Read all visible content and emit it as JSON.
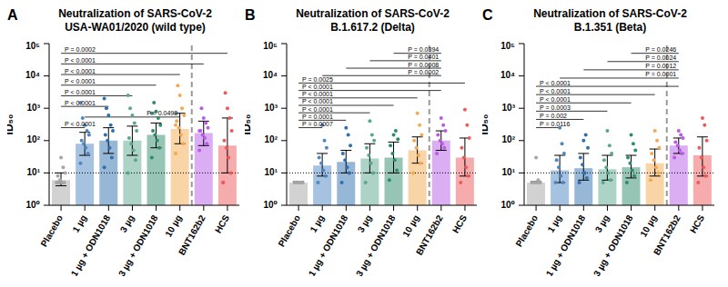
{
  "chart_data": [
    {
      "type": "bar",
      "panel_label": "A",
      "title": "Neutralization of SARS-CoV-2\nUSA-WA01/2020 (wild type)",
      "y_label": "ID₅₀",
      "log": "y",
      "categories": [
        "Placebo",
        "1 µg",
        "1 µg + ODN1018",
        "3 µg",
        "3 µg + ODN1018",
        "10 µg",
        "BNT162b2",
        "HCS"
      ],
      "colors": [
        "#a6a6a6",
        "#4e86c4",
        "#2f6fae",
        "#5aa88c",
        "#2e8b6e",
        "#f4a950",
        "#b85ce6",
        "#ee5a5a"
      ],
      "values": [
        6,
        80,
        100,
        100,
        150,
        230,
        170,
        70
      ],
      "error_low": [
        4,
        35,
        40,
        35,
        60,
        80,
        70,
        10
      ],
      "error_high": [
        10,
        180,
        250,
        280,
        350,
        700,
        400,
        500
      ],
      "points": [
        [
          5,
          5,
          5,
          6,
          8,
          10,
          15,
          30,
          5,
          5
        ],
        [
          20,
          40,
          60,
          80,
          100,
          150,
          200,
          300,
          500,
          1500
        ],
        [
          15,
          30,
          60,
          100,
          150,
          200,
          300,
          600,
          1000,
          2000
        ],
        [
          10,
          25,
          50,
          80,
          120,
          200,
          350,
          600,
          1000,
          2500
        ],
        [
          30,
          60,
          100,
          150,
          200,
          300,
          500,
          800,
          1500,
          700
        ],
        [
          40,
          80,
          150,
          250,
          400,
          600,
          1000,
          2500,
          5000,
          300
        ],
        [
          50,
          80,
          120,
          150,
          200,
          250,
          350,
          500,
          1000,
          200
        ],
        [
          5,
          10,
          30,
          60,
          100,
          200,
          500,
          1000,
          3000,
          5
        ]
      ],
      "limit_of_detection": 10,
      "comparisons": [
        {
          "from": "Placebo",
          "to": "1 µg",
          "label": "P < 0.0001"
        },
        {
          "from": "1 µg",
          "to": "10 µg",
          "label": "P = 0.0498"
        },
        {
          "from": "Placebo",
          "to": "1 µg + ODN1018",
          "label": "P < 0.0001"
        },
        {
          "from": "Placebo",
          "to": "3 µg",
          "label": "P < 0.0001"
        },
        {
          "from": "Placebo",
          "to": "3 µg + ODN1018",
          "label": "P < 0.0001"
        },
        {
          "from": "Placebo",
          "to": "10 µg",
          "label": "P < 0.0001"
        },
        {
          "from": "Placebo",
          "to": "BNT162b2",
          "label": "P < 0.0001"
        },
        {
          "from": "Placebo",
          "to": "HCS",
          "label": "P = 0.0002"
        }
      ],
      "ylim": [
        1,
        100000
      ],
      "yticks": [
        {
          "value": 1,
          "label": "10⁰"
        },
        {
          "value": 10,
          "label": "10¹"
        },
        {
          "value": 100,
          "label": "10²"
        },
        {
          "value": 1000,
          "label": "10³"
        },
        {
          "value": 10000,
          "label": "10⁴"
        },
        {
          "value": 100000,
          "label": "10⁵"
        }
      ]
    },
    {
      "type": "bar",
      "panel_label": "B",
      "title": "Neutralization of SARS-CoV-2\nB.1.617.2 (Delta)",
      "y_label": "ID₅₀",
      "log": "y",
      "categories": [
        "Placebo",
        "1 µg",
        "1 µg + ODN1018",
        "3 µg",
        "3 µg + ODN1018",
        "10 µg",
        "BNT162b2",
        "HCS"
      ],
      "colors": [
        "#a6a6a6",
        "#4e86c4",
        "#2f6fae",
        "#5aa88c",
        "#2e8b6e",
        "#f4a950",
        "#b85ce6",
        "#ee5a5a"
      ],
      "values": [
        5,
        17,
        22,
        28,
        30,
        50,
        100,
        30
      ],
      "error_low": [
        5,
        8,
        10,
        10,
        10,
        20,
        50,
        8
      ],
      "error_high": [
        5.5,
        40,
        50,
        80,
        90,
        130,
        200,
        120
      ],
      "points": [
        [
          5,
          5,
          5,
          5,
          5,
          5,
          5,
          5
        ],
        [
          5,
          8,
          12,
          20,
          30,
          60,
          100,
          300
        ],
        [
          5,
          10,
          15,
          25,
          40,
          70,
          150,
          250
        ],
        [
          5,
          10,
          20,
          35,
          60,
          100,
          150,
          400
        ],
        [
          6,
          12,
          25,
          40,
          70,
          110,
          200,
          150
        ],
        [
          10,
          20,
          35,
          60,
          100,
          150,
          300,
          700
        ],
        [
          40,
          60,
          80,
          100,
          150,
          200,
          300,
          500
        ],
        [
          5,
          8,
          15,
          30,
          60,
          120,
          300,
          900
        ]
      ],
      "limit_of_detection": 10,
      "comparisons": [
        {
          "from": "Placebo",
          "to": "1 µg",
          "label": "P = 0.0007"
        },
        {
          "from": "Placebo",
          "to": "1 µg + ODN1018",
          "label": "P = 0.0001"
        },
        {
          "from": "Placebo",
          "to": "3 µg",
          "label": "P < 0.0001"
        },
        {
          "from": "Placebo",
          "to": "3 µg + ODN1018",
          "label": "P < 0.0001"
        },
        {
          "from": "Placebo",
          "to": "10 µg",
          "label": "P < 0.0001"
        },
        {
          "from": "Placebo",
          "to": "BNT162b2",
          "label": "P < 0.0001"
        },
        {
          "from": "Placebo",
          "to": "HCS",
          "label": "P = 0.0025"
        },
        {
          "from": "1 µg",
          "to": "BNT162b2",
          "label": "P = 0.0002"
        },
        {
          "from": "1 µg + ODN1018",
          "to": "BNT162b2",
          "label": "P = 0.0008"
        },
        {
          "from": "3 µg",
          "to": "BNT162b2",
          "label": "P = 0.0401"
        },
        {
          "from": "3 µg + ODN1018",
          "to": "BNT162b2",
          "label": "P = 0.0394"
        }
      ],
      "ylim": [
        1,
        100000
      ],
      "yticks": [
        {
          "value": 1,
          "label": "10⁰"
        },
        {
          "value": 10,
          "label": "10¹"
        },
        {
          "value": 100,
          "label": "10²"
        },
        {
          "value": 1000,
          "label": "10³"
        },
        {
          "value": 10000,
          "label": "10⁴"
        },
        {
          "value": 100000,
          "label": "10⁵"
        }
      ]
    },
    {
      "type": "bar",
      "panel_label": "C",
      "title": "Neutralization of SARS-CoV-2\nB.1.351 (Beta)",
      "y_label": "ID₅₀",
      "log": "y",
      "categories": [
        "Placebo",
        "1 µg",
        "1 µg + ODN1018",
        "3 µg",
        "3 µg + ODN1018",
        "10 µg",
        "BNT162b2",
        "HCS"
      ],
      "colors": [
        "#a6a6a6",
        "#4e86c4",
        "#2f6fae",
        "#5aa88c",
        "#2e8b6e",
        "#f4a950",
        "#b85ce6",
        "#ee5a5a"
      ],
      "values": [
        5,
        12,
        14,
        13,
        15,
        20,
        70,
        35
      ],
      "error_low": [
        5,
        5,
        6,
        6,
        7,
        8,
        40,
        8
      ],
      "error_high": [
        5.5,
        35,
        40,
        35,
        35,
        55,
        120,
        130
      ],
      "points": [
        [
          5,
          5,
          5,
          5,
          5,
          5,
          6,
          30
        ],
        [
          5,
          5,
          8,
          15,
          25,
          40,
          80,
          250
        ],
        [
          5,
          7,
          10,
          18,
          30,
          60,
          150,
          100
        ],
        [
          5,
          6,
          10,
          15,
          25,
          40,
          70,
          200
        ],
        [
          5,
          8,
          12,
          20,
          30,
          50,
          80,
          150
        ],
        [
          6,
          10,
          15,
          25,
          40,
          60,
          100,
          200
        ],
        [
          30,
          40,
          50,
          70,
          90,
          120,
          150,
          200
        ],
        [
          5,
          8,
          15,
          30,
          60,
          100,
          300,
          500
        ]
      ],
      "limit_of_detection": 10,
      "comparisons": [
        {
          "from": "Placebo",
          "to": "1 µg",
          "label": "P = 0.0116"
        },
        {
          "from": "Placebo",
          "to": "1 µg + ODN1018",
          "label": "P = 0.002"
        },
        {
          "from": "Placebo",
          "to": "3 µg",
          "label": "P = 0.0003"
        },
        {
          "from": "Placebo",
          "to": "3 µg + ODN1018",
          "label": "P < 0.0001"
        },
        {
          "from": "Placebo",
          "to": "10 µg",
          "label": "P < 0.0001"
        },
        {
          "from": "Placebo",
          "to": "BNT162b2",
          "label": "P < 0.0001"
        },
        {
          "from": "1 µg",
          "to": "BNT162b2",
          "label": "P = 0.0001"
        },
        {
          "from": "1 µg + ODN1018",
          "to": "BNT162b2",
          "label": "P = 0.0012"
        },
        {
          "from": "3 µg",
          "to": "BNT162b2",
          "label": "P = 0.0024"
        },
        {
          "from": "3 µg + ODN1018",
          "to": "BNT162b2",
          "label": "P = 0.0246"
        }
      ],
      "ylim": [
        1,
        100000
      ],
      "yticks": [
        {
          "value": 1,
          "label": "10⁰"
        },
        {
          "value": 10,
          "label": "10¹"
        },
        {
          "value": 100,
          "label": "10²"
        },
        {
          "value": 1000,
          "label": "10³"
        },
        {
          "value": 10000,
          "label": "10⁴"
        },
        {
          "value": 100000,
          "label": "10⁵"
        }
      ]
    }
  ]
}
